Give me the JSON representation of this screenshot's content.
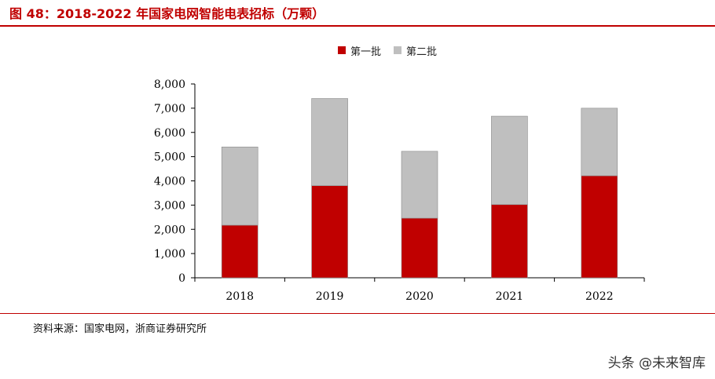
{
  "figure": {
    "title": "图 48：2018-2022 年国家电网智能电表招标（万颗）",
    "source": "资料来源：国家电网，浙商证券研究所",
    "watermark": "头条 @未来智库"
  },
  "colors": {
    "accent": "#C00000",
    "series1": "#C00000",
    "series2": "#BFBFBF"
  },
  "chart_data": {
    "type": "bar",
    "stacked": true,
    "categories": [
      "2018",
      "2019",
      "2020",
      "2021",
      "2022"
    ],
    "series": [
      {
        "name": "第一批",
        "values": [
          2170,
          3800,
          2460,
          3020,
          4210
        ]
      },
      {
        "name": "第二批",
        "values": [
          3230,
          3600,
          2760,
          3650,
          2790
        ]
      }
    ],
    "ylim": [
      0,
      8000
    ],
    "yticks": [
      "0",
      "1,000",
      "2,000",
      "3,000",
      "4,000",
      "5,000",
      "6,000",
      "7,000",
      "8,000"
    ],
    "legend_position": "top-center",
    "grid": false
  }
}
